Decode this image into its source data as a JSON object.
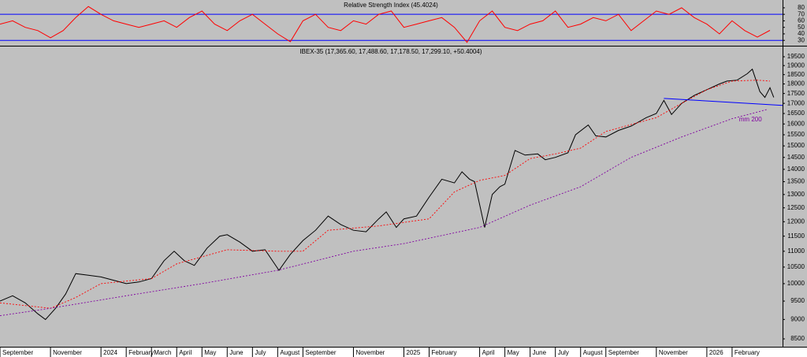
{
  "chart_data": [
    {
      "type": "line",
      "title": "Relative Strength Index (45.4024)",
      "x": [
        0,
        0.5,
        1,
        1.5,
        2,
        2.5,
        3,
        3.5,
        4,
        4.5,
        5,
        5.5,
        6,
        6.5,
        7,
        7.5,
        8,
        8.5,
        9,
        9.5,
        10,
        10.5,
        11,
        11.5,
        12,
        12.5,
        13,
        13.5,
        14,
        14.5,
        15,
        15.5,
        16,
        16.5,
        17,
        17.5,
        18,
        18.5,
        19,
        19.5,
        20,
        20.5,
        21,
        21.5,
        22,
        22.5,
        23,
        23.5,
        24,
        24.5,
        25,
        25.5,
        26,
        26.5,
        27,
        27.5,
        28,
        28.5,
        29,
        29.5,
        30,
        30.5
      ],
      "series": [
        {
          "color": "#ff0000",
          "values": [
            55,
            60,
            50,
            45,
            34,
            45,
            65,
            82,
            70,
            60,
            55,
            50,
            55,
            60,
            50,
            65,
            75,
            55,
            45,
            60,
            70,
            55,
            40,
            28,
            60,
            70,
            50,
            45,
            60,
            55,
            70,
            75,
            50,
            55,
            60,
            65,
            50,
            27,
            60,
            75,
            50,
            45,
            55,
            60,
            75,
            50,
            55,
            65,
            60,
            70,
            45,
            60,
            75,
            70,
            80,
            65,
            55,
            40,
            60,
            45,
            35,
            45.4024
          ]
        }
      ],
      "levels": [
        70,
        30
      ],
      "level_color": "#0000ff",
      "xlim": [
        0,
        31
      ],
      "ylim": [
        23,
        92
      ],
      "yticks": [
        80,
        70,
        60,
        50,
        40,
        30
      ]
    },
    {
      "type": "line",
      "title": "IBEX-35 (17,365.60, 17,488.60, 17,178.50, 17,299.10, +50.4004)",
      "ylog": true,
      "series": [
        {
          "color": "#000000",
          "style": "solid",
          "x": [
            0,
            0.5,
            1,
            1.5,
            1.8,
            2.2,
            2.6,
            3,
            3.5,
            4,
            4.5,
            5,
            5.5,
            6,
            6.5,
            6.9,
            7.3,
            7.7,
            8.2,
            8.7,
            9,
            9.5,
            10,
            10.5,
            11.05,
            11.5,
            12,
            12.5,
            13,
            13.5,
            14,
            14.5,
            15,
            15.3,
            15.7,
            16,
            16.5,
            17,
            17.5,
            18,
            18.3,
            18.6,
            18.8,
            19.2,
            19.5,
            19.8,
            20,
            20.4,
            20.8,
            21.3,
            21.6,
            22,
            22.5,
            22.8,
            23.3,
            23.6,
            24,
            24.5,
            25,
            25.6,
            26,
            26.3,
            26.6,
            27,
            27.5,
            28,
            28.5,
            28.8,
            29.2,
            29.6,
            29.8,
            30.1,
            30.3,
            30.5,
            30.65
          ],
          "values": [
            9500,
            9650,
            9450,
            9150,
            9000,
            9300,
            9700,
            10300,
            10250,
            10200,
            10100,
            10000,
            10050,
            10150,
            10700,
            11000,
            10700,
            10550,
            11100,
            11500,
            11550,
            11300,
            11000,
            11050,
            10400,
            10900,
            11350,
            11700,
            12200,
            11900,
            11700,
            11650,
            12100,
            12350,
            11800,
            12100,
            12200,
            12900,
            13600,
            13450,
            13900,
            13600,
            13500,
            11800,
            13000,
            13300,
            13400,
            14800,
            14600,
            14650,
            14400,
            14500,
            14700,
            15500,
            15950,
            15450,
            15400,
            15700,
            15900,
            16300,
            16500,
            17150,
            16450,
            17000,
            17400,
            17700,
            18000,
            18150,
            18200,
            18550,
            18800,
            17600,
            17300,
            17800,
            17299.1
          ]
        },
        {
          "color": "#ff0000",
          "style": "dashed",
          "x": [
            0,
            2,
            3,
            4,
            6,
            7,
            9,
            11,
            12,
            13,
            15,
            17,
            18,
            19,
            20,
            21,
            22,
            23,
            24,
            26,
            27,
            28,
            29,
            30,
            30.5
          ],
          "values": [
            9450,
            9300,
            9600,
            10000,
            10150,
            10600,
            11050,
            11000,
            11000,
            11700,
            11850,
            12100,
            13100,
            13550,
            13750,
            14450,
            14650,
            14900,
            15650,
            16300,
            17000,
            17700,
            18150,
            18200,
            18150
          ]
        },
        {
          "name": "mm 200",
          "color": "#8000a0",
          "style": "dashed",
          "x": [
            0,
            2,
            5,
            8,
            11,
            14,
            16,
            19,
            21,
            23,
            25,
            27,
            29,
            30.4
          ],
          "values": [
            9100,
            9300,
            9650,
            10000,
            10400,
            11000,
            11250,
            11800,
            12600,
            13300,
            14500,
            15400,
            16250,
            16700
          ]
        },
        {
          "color": "#0000ff",
          "style": "solid",
          "x": [
            26.3,
            31
          ],
          "values": [
            17250,
            16900
          ]
        }
      ],
      "xlim": [
        0,
        31
      ],
      "ylim": [
        8500,
        19500
      ],
      "yticks": [
        19500,
        19000,
        18500,
        18000,
        17500,
        17000,
        16500,
        16000,
        15500,
        15000,
        14500,
        14000,
        13500,
        13000,
        12500,
        12000,
        11500,
        11000,
        10500,
        10000,
        9500,
        9000,
        8500
      ],
      "xticks": [
        {
          "value": 0,
          "label": "September"
        },
        {
          "value": 2,
          "label": "November"
        },
        {
          "value": 4,
          "label": "2024"
        },
        {
          "value": 5,
          "label": "February"
        },
        {
          "value": 6,
          "label": "March"
        },
        {
          "value": 7,
          "label": "April"
        },
        {
          "value": 8,
          "label": "May"
        },
        {
          "value": 9,
          "label": "June"
        },
        {
          "value": 10,
          "label": "July"
        },
        {
          "value": 11,
          "label": "August"
        },
        {
          "value": 12,
          "label": "September"
        },
        {
          "value": 14,
          "label": "November"
        },
        {
          "value": 16,
          "label": "2025"
        },
        {
          "value": 17,
          "label": "February"
        },
        {
          "value": 19,
          "label": "April"
        },
        {
          "value": 20,
          "label": "May"
        },
        {
          "value": 21,
          "label": "June"
        },
        {
          "value": 22,
          "label": "July"
        },
        {
          "value": 23,
          "label": "August"
        },
        {
          "value": 24,
          "label": "September"
        },
        {
          "value": 26,
          "label": "November"
        },
        {
          "value": 28,
          "label": "2026"
        },
        {
          "value": 29,
          "label": "February"
        }
      ]
    }
  ]
}
